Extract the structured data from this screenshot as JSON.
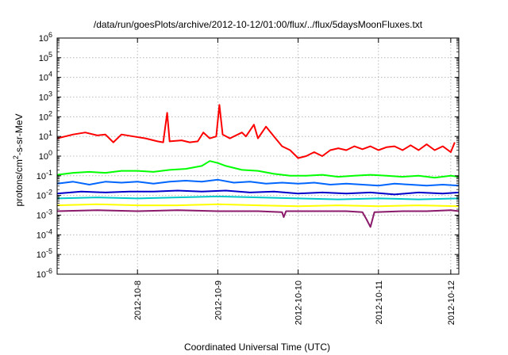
{
  "chart_data": {
    "type": "line",
    "title": "/data/run/goesPlots/archive/2012-10-12/01:00/flux/../flux/5daysMoonFluxes.txt",
    "xlabel": "Coordinated Universal Time (UTC)",
    "ylabel": {
      "base": "protons/cm",
      "sup": "2",
      "rest": "-s-sr-MeV"
    },
    "yscale": "log",
    "ylim_exp": [
      -6,
      6
    ],
    "ytick_exponents": [
      -6,
      -5,
      -4,
      -3,
      -2,
      -1,
      0,
      1,
      2,
      3,
      4,
      5,
      6
    ],
    "xlim_days": [
      0,
      5.0
    ],
    "xticks": [
      {
        "label": "2012-10-8",
        "day": 1.0
      },
      {
        "label": "2012-10-9",
        "day": 2.0
      },
      {
        "label": "2012-10-10",
        "day": 3.0
      },
      {
        "label": "2012-10-11",
        "day": 4.0
      },
      {
        "label": "2012-10-12",
        "day": 4.9
      }
    ],
    "grid": true,
    "series": [
      {
        "color": "#ff0000",
        "points": [
          [
            0,
            0.9
          ],
          [
            0.2,
            1.1
          ],
          [
            0.35,
            1.2
          ],
          [
            0.5,
            1.05
          ],
          [
            0.6,
            1.1
          ],
          [
            0.7,
            0.7
          ],
          [
            0.8,
            1.1
          ],
          [
            0.95,
            1.0
          ],
          [
            1.1,
            0.9
          ],
          [
            1.25,
            0.75
          ],
          [
            1.32,
            0.7
          ],
          [
            1.37,
            2.2
          ],
          [
            1.4,
            0.75
          ],
          [
            1.55,
            0.8
          ],
          [
            1.65,
            0.7
          ],
          [
            1.75,
            0.75
          ],
          [
            1.82,
            1.2
          ],
          [
            1.9,
            0.9
          ],
          [
            1.98,
            1.0
          ],
          [
            2.02,
            2.6
          ],
          [
            2.06,
            1.1
          ],
          [
            2.15,
            0.9
          ],
          [
            2.3,
            1.2
          ],
          [
            2.35,
            1.0
          ],
          [
            2.45,
            1.6
          ],
          [
            2.5,
            0.9
          ],
          [
            2.6,
            1.5
          ],
          [
            2.7,
            1.0
          ],
          [
            2.8,
            0.5
          ],
          [
            2.9,
            0.3
          ],
          [
            3.0,
            -0.1
          ],
          [
            3.1,
            0.0
          ],
          [
            3.2,
            0.2
          ],
          [
            3.3,
            0.0
          ],
          [
            3.4,
            0.3
          ],
          [
            3.5,
            0.4
          ],
          [
            3.6,
            0.3
          ],
          [
            3.7,
            0.5
          ],
          [
            3.8,
            0.35
          ],
          [
            3.9,
            0.5
          ],
          [
            4.0,
            0.3
          ],
          [
            4.1,
            0.45
          ],
          [
            4.2,
            0.5
          ],
          [
            4.3,
            0.3
          ],
          [
            4.4,
            0.55
          ],
          [
            4.5,
            0.3
          ],
          [
            4.6,
            0.6
          ],
          [
            4.7,
            0.3
          ],
          [
            4.8,
            0.5
          ],
          [
            4.9,
            0.2
          ],
          [
            4.95,
            0.7
          ]
        ]
      },
      {
        "color": "#00ff00",
        "points": [
          [
            0,
            -0.95
          ],
          [
            0.2,
            -0.85
          ],
          [
            0.4,
            -0.8
          ],
          [
            0.6,
            -0.85
          ],
          [
            0.8,
            -0.75
          ],
          [
            1.0,
            -0.75
          ],
          [
            1.2,
            -0.8
          ],
          [
            1.4,
            -0.7
          ],
          [
            1.6,
            -0.65
          ],
          [
            1.8,
            -0.5
          ],
          [
            1.9,
            -0.25
          ],
          [
            2.0,
            -0.35
          ],
          [
            2.1,
            -0.5
          ],
          [
            2.3,
            -0.7
          ],
          [
            2.5,
            -0.75
          ],
          [
            2.7,
            -0.9
          ],
          [
            2.9,
            -1.0
          ],
          [
            3.1,
            -1.0
          ],
          [
            3.3,
            -0.95
          ],
          [
            3.5,
            -1.05
          ],
          [
            3.7,
            -1.0
          ],
          [
            3.9,
            -0.95
          ],
          [
            4.1,
            -1.0
          ],
          [
            4.3,
            -1.05
          ],
          [
            4.5,
            -1.0
          ],
          [
            4.7,
            -1.1
          ],
          [
            4.9,
            -1.0
          ],
          [
            5.0,
            -1.05
          ]
        ]
      },
      {
        "color": "#0066ff",
        "points": [
          [
            0,
            -1.4
          ],
          [
            0.2,
            -1.3
          ],
          [
            0.4,
            -1.45
          ],
          [
            0.6,
            -1.3
          ],
          [
            0.8,
            -1.35
          ],
          [
            1.0,
            -1.3
          ],
          [
            1.2,
            -1.4
          ],
          [
            1.4,
            -1.3
          ],
          [
            1.6,
            -1.25
          ],
          [
            1.8,
            -1.3
          ],
          [
            2.0,
            -1.2
          ],
          [
            2.2,
            -1.35
          ],
          [
            2.4,
            -1.3
          ],
          [
            2.6,
            -1.4
          ],
          [
            2.8,
            -1.35
          ],
          [
            3.0,
            -1.4
          ],
          [
            3.2,
            -1.35
          ],
          [
            3.4,
            -1.45
          ],
          [
            3.6,
            -1.4
          ],
          [
            3.8,
            -1.45
          ],
          [
            4.0,
            -1.5
          ],
          [
            4.2,
            -1.4
          ],
          [
            4.4,
            -1.45
          ],
          [
            4.6,
            -1.5
          ],
          [
            4.8,
            -1.45
          ],
          [
            5.0,
            -1.5
          ]
        ]
      },
      {
        "color": "#0000cc",
        "points": [
          [
            0,
            -1.9
          ],
          [
            0.3,
            -1.8
          ],
          [
            0.6,
            -1.85
          ],
          [
            0.9,
            -1.8
          ],
          [
            1.2,
            -1.8
          ],
          [
            1.5,
            -1.75
          ],
          [
            1.8,
            -1.8
          ],
          [
            2.1,
            -1.75
          ],
          [
            2.4,
            -1.85
          ],
          [
            2.7,
            -1.8
          ],
          [
            3.0,
            -1.9
          ],
          [
            3.3,
            -1.85
          ],
          [
            3.6,
            -1.9
          ],
          [
            3.9,
            -1.85
          ],
          [
            4.2,
            -1.95
          ],
          [
            4.5,
            -1.85
          ],
          [
            4.8,
            -1.9
          ],
          [
            5.0,
            -1.85
          ]
        ]
      },
      {
        "color": "#00c8c8",
        "points": [
          [
            0,
            -2.15
          ],
          [
            0.5,
            -2.1
          ],
          [
            1.0,
            -2.15
          ],
          [
            1.5,
            -2.1
          ],
          [
            2.0,
            -2.05
          ],
          [
            2.5,
            -2.1
          ],
          [
            3.0,
            -2.15
          ],
          [
            3.5,
            -2.2
          ],
          [
            4.0,
            -2.15
          ],
          [
            4.5,
            -2.2
          ],
          [
            5.0,
            -2.15
          ]
        ]
      },
      {
        "color": "#ffff00",
        "points": [
          [
            0,
            -2.5
          ],
          [
            0.5,
            -2.45
          ],
          [
            1.0,
            -2.5
          ],
          [
            1.5,
            -2.5
          ],
          [
            2.0,
            -2.45
          ],
          [
            2.5,
            -2.5
          ],
          [
            3.0,
            -2.55
          ],
          [
            3.5,
            -2.5
          ],
          [
            4.0,
            -2.55
          ],
          [
            4.5,
            -2.5
          ],
          [
            5.0,
            -2.55
          ]
        ]
      },
      {
        "color": "#8b1a6b",
        "points": [
          [
            0,
            -2.8
          ],
          [
            0.5,
            -2.75
          ],
          [
            1.0,
            -2.8
          ],
          [
            1.5,
            -2.75
          ],
          [
            2.0,
            -2.8
          ],
          [
            2.5,
            -2.8
          ],
          [
            2.8,
            -2.85
          ],
          [
            2.82,
            -3.1
          ],
          [
            2.85,
            -2.8
          ],
          [
            3.2,
            -2.8
          ],
          [
            3.6,
            -2.8
          ],
          [
            3.8,
            -2.85
          ],
          [
            3.85,
            -3.2
          ],
          [
            3.9,
            -3.6
          ],
          [
            3.95,
            -2.85
          ],
          [
            4.3,
            -2.8
          ],
          [
            4.6,
            -2.8
          ],
          [
            4.9,
            -2.75
          ],
          [
            5.0,
            -2.8
          ]
        ]
      }
    ]
  }
}
